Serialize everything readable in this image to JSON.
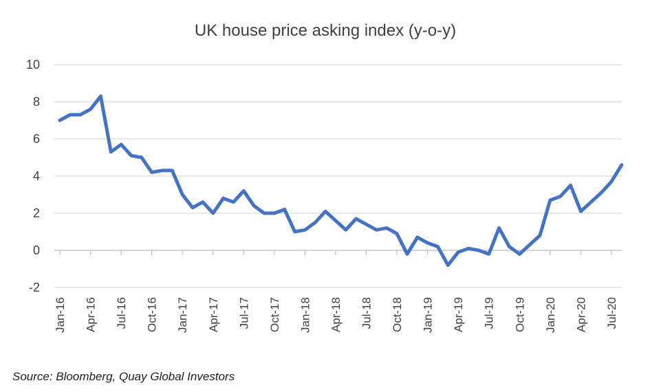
{
  "chart_data": {
    "type": "line",
    "title": "UK house price asking index (y-o-y)",
    "xlabel": "",
    "ylabel": "",
    "ylim": [
      -2,
      10
    ],
    "yticks": [
      10,
      8,
      6,
      4,
      2,
      0,
      -2
    ],
    "ytick_labels": [
      "10",
      "8",
      "6",
      "4",
      "2",
      "0",
      "-2"
    ],
    "grid": true,
    "legend": "none",
    "x_tick_labels": [
      "Jan-16",
      "Apr-16",
      "Jul-16",
      "Oct-16",
      "Jan-17",
      "Apr-17",
      "Jul-17",
      "Oct-17",
      "Jan-18",
      "Apr-18",
      "Jul-18",
      "Oct-18",
      "Jan-19",
      "Apr-19",
      "Jul-19",
      "Oct-19",
      "Jan-20",
      "Apr-20",
      "Jul-20"
    ],
    "x_tick_month_index": [
      0,
      3,
      6,
      9,
      12,
      15,
      18,
      21,
      24,
      27,
      30,
      33,
      36,
      39,
      42,
      45,
      48,
      51,
      54
    ],
    "series": [
      {
        "name": "UK house price asking index (y-o-y)",
        "color": "#4472c4",
        "start": "Jan-16",
        "frequency": "monthly",
        "values": [
          7.0,
          7.3,
          7.3,
          7.6,
          8.3,
          5.3,
          5.7,
          5.1,
          5.0,
          4.2,
          4.3,
          4.3,
          3.0,
          2.3,
          2.6,
          2.0,
          2.8,
          2.6,
          3.2,
          2.4,
          2.0,
          2.0,
          2.2,
          1.0,
          1.1,
          1.5,
          2.1,
          1.6,
          1.1,
          1.7,
          1.4,
          1.1,
          1.2,
          0.9,
          -0.2,
          0.7,
          0.4,
          0.2,
          -0.8,
          -0.1,
          0.1,
          0.0,
          -0.2,
          1.2,
          0.2,
          -0.2,
          0.3,
          0.8,
          2.7,
          2.9,
          3.5,
          2.1,
          2.6,
          3.1,
          3.7,
          4.6
        ]
      }
    ]
  },
  "source_note": "Source: Bloomberg, Quay Global Investors"
}
